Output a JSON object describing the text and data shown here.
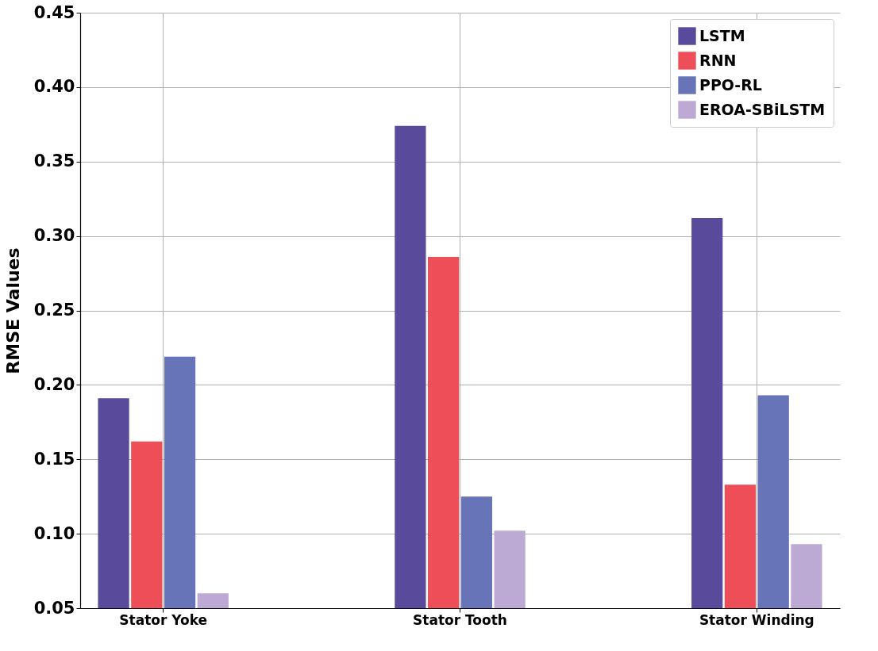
{
  "chart_data": {
    "type": "bar",
    "ylabel": "RMSE Values",
    "categories": [
      "Stator Yoke",
      "Stator Tooth",
      "Stator Winding"
    ],
    "series": [
      {
        "name": "LSTM",
        "color": "#5a4a9c",
        "values": [
          0.191,
          0.374,
          0.312
        ]
      },
      {
        "name": "RNN",
        "color": "#ee4e58",
        "values": [
          0.162,
          0.286,
          0.133
        ]
      },
      {
        "name": "PPO-RL",
        "color": "#6874b8",
        "values": [
          0.219,
          0.125,
          0.193
        ]
      },
      {
        "name": "EROA-SBiLSTM",
        "color": "#bcaad4",
        "values": [
          0.06,
          0.102,
          0.093
        ]
      }
    ],
    "ylim": [
      0.05,
      0.45
    ],
    "yticks": [
      0.05,
      {
        "value": 0.1,
        "label": "0.10"
      },
      0.15,
      {
        "value": 0.2,
        "label": "0.20"
      },
      0.25,
      {
        "value": 0.3,
        "label": "0.30"
      },
      0.35,
      {
        "value": 0.4,
        "label": "0.40"
      },
      0.45
    ],
    "grid": true,
    "legend": "top right"
  }
}
